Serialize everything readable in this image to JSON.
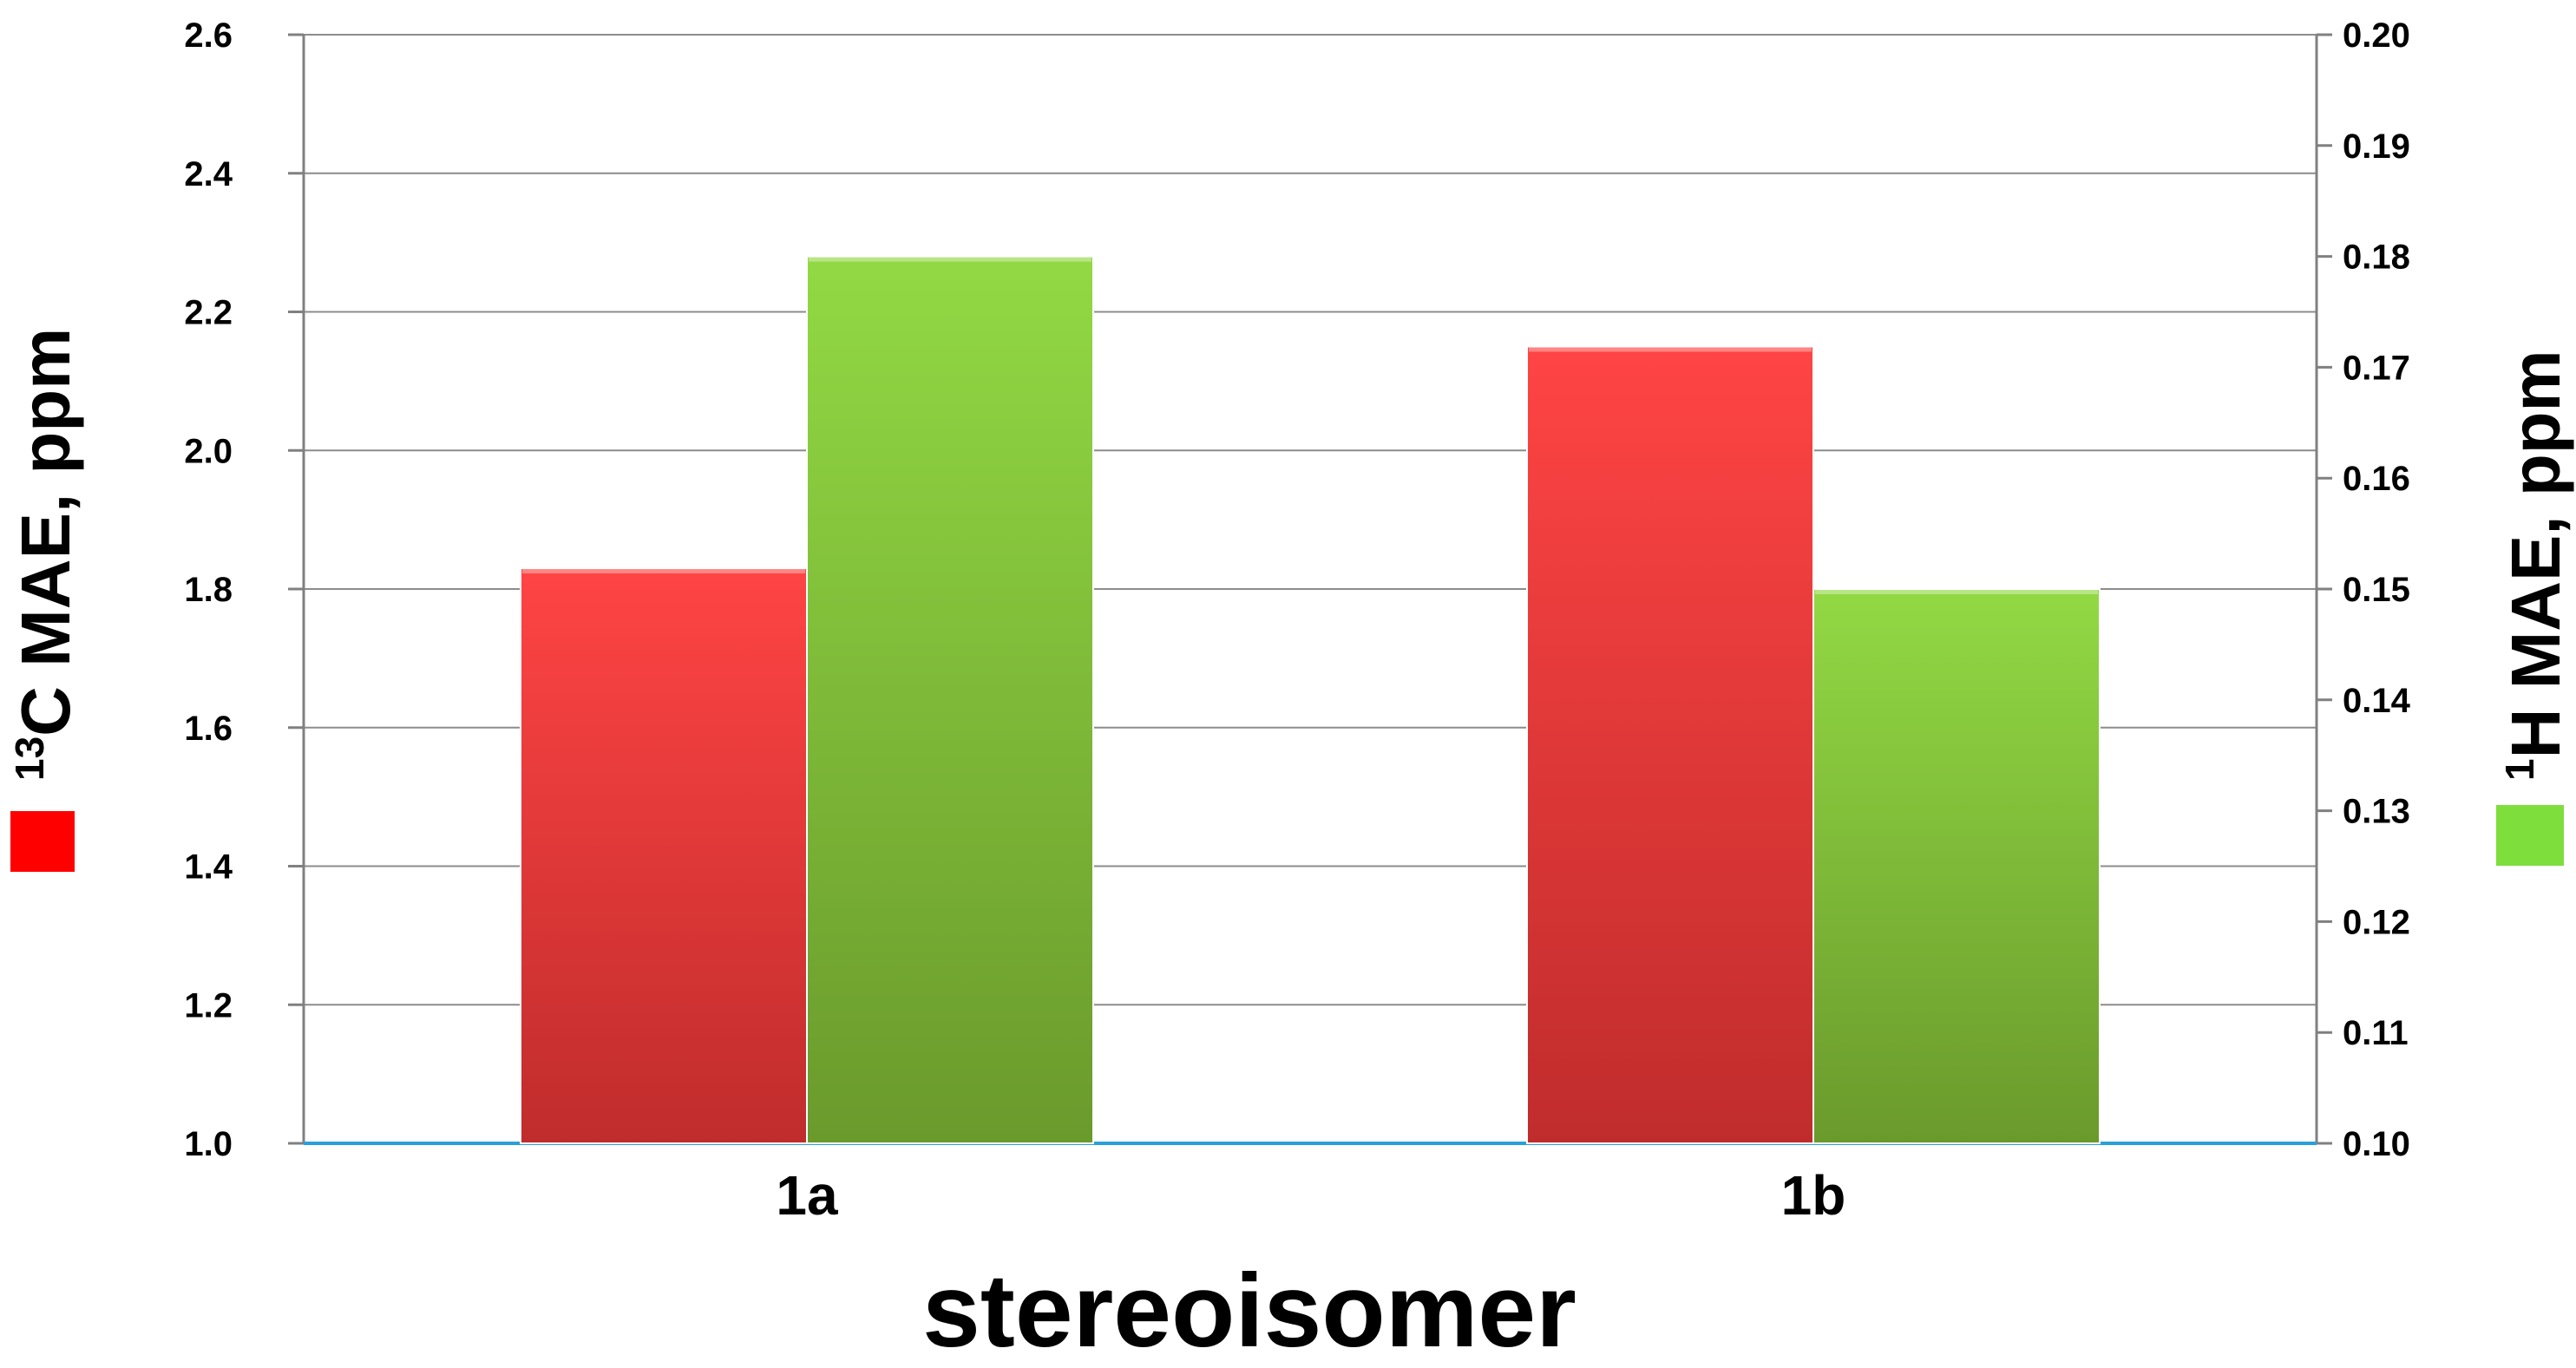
{
  "chart_data": {
    "type": "bar",
    "categories": [
      "1a",
      "1b"
    ],
    "xlabel": "stereoisomer",
    "y_left": {
      "label_sup": "13",
      "label": "C MAE, ppm",
      "ylim": [
        1.0,
        2.6
      ],
      "ticks": [
        "1.0",
        "1.2",
        "1.4",
        "1.6",
        "1.8",
        "2.0",
        "2.2",
        "2.4",
        "2.6"
      ]
    },
    "y_right": {
      "label_sup": "1",
      "label": "H MAE, ppm",
      "ylim": [
        0.1,
        0.2
      ],
      "ticks": [
        "0.10",
        "0.11",
        "0.12",
        "0.13",
        "0.14",
        "0.15",
        "0.16",
        "0.17",
        "0.18",
        "0.19",
        "0.20"
      ]
    },
    "series": [
      {
        "axis": "left",
        "color": "#ff3b3b",
        "values": [
          1.83,
          2.15
        ]
      },
      {
        "axis": "right",
        "color": "#8ed646",
        "values": [
          0.18,
          0.15
        ]
      }
    ],
    "grid": true,
    "legend": "axis-swatches"
  }
}
